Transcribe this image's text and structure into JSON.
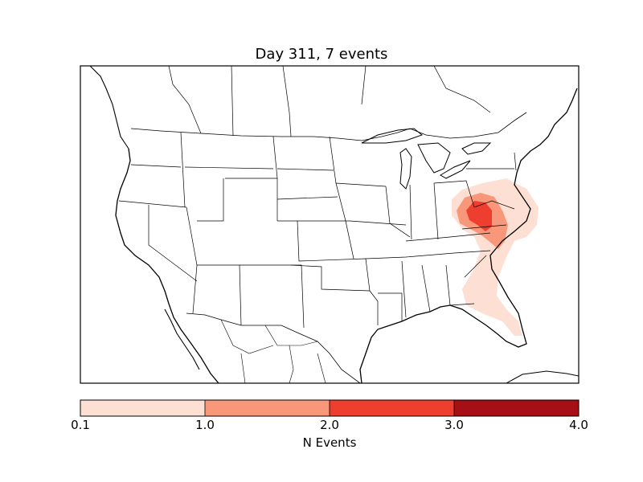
{
  "map": {
    "title": "Day 311, 7 events",
    "region": "Contiguous United States with southern Canada and northern Mexico",
    "boundaries": [
      "coastlines",
      "country borders",
      "state/province borders"
    ]
  },
  "density": {
    "description": "Shaded event-density contours centered over Virginia / North Carolina, extending south along the Atlantic coast to Florida",
    "levels": [
      {
        "range": [
          0.1,
          1.0
        ],
        "color": "#fde0d3"
      },
      {
        "range": [
          1.0,
          2.0
        ],
        "color": "#f9977b"
      },
      {
        "range": [
          2.0,
          3.0
        ],
        "color": "#ee3e30"
      },
      {
        "range": [
          3.0,
          4.0
        ],
        "color": "#a50f15"
      }
    ]
  },
  "colorbar": {
    "label": "N Events",
    "ticks": [
      "0.1",
      "1.0",
      "2.0",
      "3.0",
      "4.0"
    ],
    "colors": [
      "#fde0d3",
      "#f9977b",
      "#ee3e30",
      "#a50f15"
    ]
  }
}
